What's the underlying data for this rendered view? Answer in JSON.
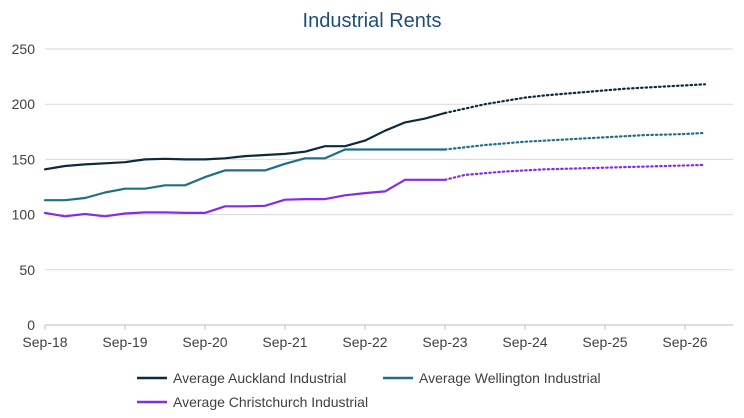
{
  "chart_data": {
    "type": "line",
    "title": "Industrial Rents",
    "xlabel": "",
    "ylabel": "",
    "ylim": [
      0,
      250
    ],
    "yticks": [
      0,
      50,
      100,
      150,
      200,
      250
    ],
    "x_tick_labels": [
      "Sep-18",
      "Sep-19",
      "Sep-20",
      "Sep-21",
      "Sep-22",
      "Sep-23",
      "Sep-24",
      "Sep-25",
      "Sep-26"
    ],
    "grid": "horizontal",
    "legend_position": "bottom",
    "forecast_style": "dotted",
    "series": [
      {
        "name": "Average Auckland Industrial",
        "color": "#0d2b3e",
        "actual": [
          [
            "2018-09",
            141
          ],
          [
            "2018-12",
            144
          ],
          [
            "2019-03",
            145.5
          ],
          [
            "2019-06",
            146.5
          ],
          [
            "2019-09",
            147.5
          ],
          [
            "2019-12",
            150
          ],
          [
            "2020-03",
            150.5
          ],
          [
            "2020-06",
            150
          ],
          [
            "2020-09",
            150
          ],
          [
            "2020-12",
            151
          ],
          [
            "2021-03",
            153
          ],
          [
            "2021-06",
            154
          ],
          [
            "2021-09",
            155
          ],
          [
            "2021-12",
            157
          ],
          [
            "2022-03",
            162
          ],
          [
            "2022-06",
            162
          ],
          [
            "2022-09",
            167
          ],
          [
            "2022-12",
            176
          ],
          [
            "2023-03",
            183.5
          ],
          [
            "2023-06",
            187
          ],
          [
            "2023-09",
            192
          ]
        ],
        "forecast": [
          [
            "2023-09",
            192
          ],
          [
            "2023-12",
            196
          ],
          [
            "2024-03",
            200
          ],
          [
            "2024-06",
            203
          ],
          [
            "2024-09",
            206
          ],
          [
            "2024-12",
            208
          ],
          [
            "2025-03",
            209.5
          ],
          [
            "2025-06",
            211
          ],
          [
            "2025-09",
            212.5
          ],
          [
            "2025-12",
            214
          ],
          [
            "2026-03",
            215
          ],
          [
            "2026-06",
            216
          ],
          [
            "2026-09",
            217
          ],
          [
            "2026-12",
            218
          ]
        ]
      },
      {
        "name": "Average Wellington Industrial",
        "color": "#1f6f8b",
        "actual": [
          [
            "2018-09",
            113
          ],
          [
            "2018-12",
            113
          ],
          [
            "2019-03",
            115
          ],
          [
            "2019-06",
            120
          ],
          [
            "2019-09",
            123.5
          ],
          [
            "2019-12",
            123.5
          ],
          [
            "2020-03",
            126.5
          ],
          [
            "2020-06",
            126.5
          ],
          [
            "2020-09",
            134
          ],
          [
            "2020-12",
            140
          ],
          [
            "2021-03",
            140
          ],
          [
            "2021-06",
            140
          ],
          [
            "2021-09",
            146
          ],
          [
            "2021-12",
            151
          ],
          [
            "2022-03",
            151
          ],
          [
            "2022-06",
            159
          ],
          [
            "2022-09",
            159
          ],
          [
            "2022-12",
            159
          ],
          [
            "2023-03",
            159
          ],
          [
            "2023-06",
            159
          ],
          [
            "2023-09",
            159
          ]
        ],
        "forecast": [
          [
            "2023-09",
            159
          ],
          [
            "2023-12",
            161
          ],
          [
            "2024-03",
            163
          ],
          [
            "2024-06",
            164.5
          ],
          [
            "2024-09",
            166
          ],
          [
            "2024-12",
            167
          ],
          [
            "2025-03",
            168
          ],
          [
            "2025-06",
            169
          ],
          [
            "2025-09",
            170
          ],
          [
            "2025-12",
            171
          ],
          [
            "2026-03",
            172
          ],
          [
            "2026-06",
            172.5
          ],
          [
            "2026-09",
            173
          ],
          [
            "2026-12",
            174
          ]
        ]
      },
      {
        "name": "Average Christchurch Industrial",
        "color": "#8a2be2",
        "actual": [
          [
            "2018-09",
            101.5
          ],
          [
            "2018-12",
            98.5
          ],
          [
            "2019-03",
            100.5
          ],
          [
            "2019-06",
            98.5
          ],
          [
            "2019-09",
            101
          ],
          [
            "2019-12",
            102
          ],
          [
            "2020-03",
            102
          ],
          [
            "2020-06",
            101.5
          ],
          [
            "2020-09",
            101.5
          ],
          [
            "2020-12",
            107.5
          ],
          [
            "2021-03",
            107.5
          ],
          [
            "2021-06",
            108
          ],
          [
            "2021-09",
            113.5
          ],
          [
            "2021-12",
            114
          ],
          [
            "2022-03",
            114
          ],
          [
            "2022-06",
            117.5
          ],
          [
            "2022-09",
            119.5
          ],
          [
            "2022-12",
            121
          ],
          [
            "2023-03",
            131.5
          ],
          [
            "2023-06",
            131.5
          ],
          [
            "2023-09",
            131.5
          ]
        ],
        "forecast": [
          [
            "2023-09",
            131.5
          ],
          [
            "2023-12",
            136
          ],
          [
            "2024-03",
            137.5
          ],
          [
            "2024-06",
            139
          ],
          [
            "2024-09",
            140
          ],
          [
            "2024-12",
            141
          ],
          [
            "2025-03",
            141.5
          ],
          [
            "2025-06",
            142
          ],
          [
            "2025-09",
            142.5
          ],
          [
            "2025-12",
            143
          ],
          [
            "2026-03",
            143.5
          ],
          [
            "2026-06",
            144
          ],
          [
            "2026-09",
            144.5
          ],
          [
            "2026-12",
            145
          ]
        ]
      }
    ]
  }
}
